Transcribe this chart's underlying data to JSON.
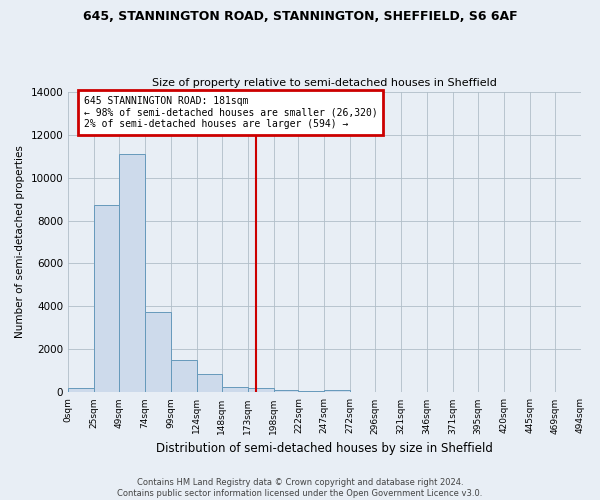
{
  "title1": "645, STANNINGTON ROAD, STANNINGTON, SHEFFIELD, S6 6AF",
  "title2": "Size of property relative to semi-detached houses in Sheffield",
  "xlabel": "Distribution of semi-detached houses by size in Sheffield",
  "ylabel": "Number of semi-detached properties",
  "footnote": "Contains HM Land Registry data © Crown copyright and database right 2024.\nContains public sector information licensed under the Open Government Licence v3.0.",
  "bin_labels": [
    "0sqm",
    "25sqm",
    "49sqm",
    "74sqm",
    "99sqm",
    "124sqm",
    "148sqm",
    "173sqm",
    "198sqm",
    "222sqm",
    "247sqm",
    "272sqm",
    "296sqm",
    "321sqm",
    "346sqm",
    "371sqm",
    "395sqm",
    "420sqm",
    "445sqm",
    "469sqm",
    "494sqm"
  ],
  "bar_values": [
    200,
    8700,
    11100,
    3750,
    1500,
    850,
    250,
    200,
    100,
    50,
    100,
    0,
    0,
    0,
    0,
    0,
    0,
    0,
    0,
    0
  ],
  "bar_color": "#cddaeb",
  "bar_edge_color": "#6699bb",
  "property_line_x": 181,
  "annotation_title": "645 STANNINGTON ROAD: 181sqm",
  "annotation_line1": "← 98% of semi-detached houses are smaller (26,320)",
  "annotation_line2": "2% of semi-detached houses are larger (594) →",
  "annotation_box_color": "#ffffff",
  "annotation_box_edge": "#cc0000",
  "vline_color": "#cc0000",
  "ylim": [
    0,
    14000
  ],
  "yticks": [
    0,
    2000,
    4000,
    6000,
    8000,
    10000,
    12000,
    14000
  ],
  "bin_edges": [
    0,
    25,
    49,
    74,
    99,
    124,
    148,
    173,
    198,
    222,
    247,
    272,
    296,
    321,
    346,
    371,
    395,
    420,
    445,
    469,
    494
  ],
  "figsize": [
    6.0,
    5.0
  ],
  "dpi": 100,
  "background_color": "#e8eef5"
}
